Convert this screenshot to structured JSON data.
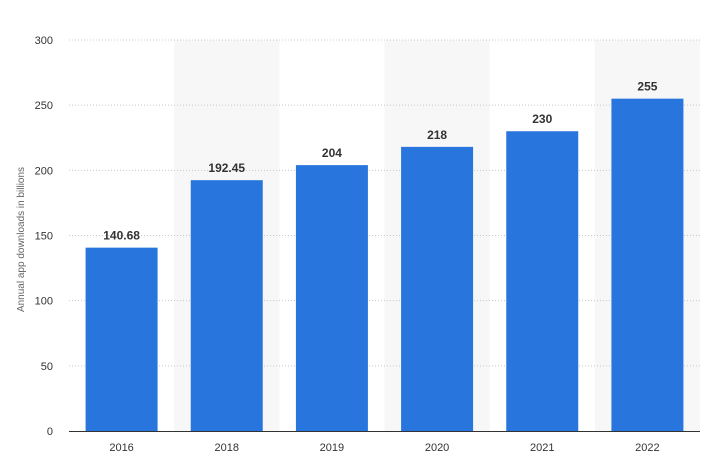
{
  "chart_data": {
    "type": "bar",
    "title": "",
    "xlabel": "",
    "ylabel": "Annual app downloads in billions",
    "categories": [
      "2016",
      "2018",
      "2019",
      "2020",
      "2021",
      "2022"
    ],
    "values": [
      140.68,
      192.45,
      204,
      218,
      230,
      255
    ],
    "value_labels": [
      "140.68",
      "192.45",
      "204",
      "218",
      "230",
      "255"
    ],
    "ylim": [
      0,
      300
    ],
    "yticks": [
      0,
      50,
      100,
      150,
      200,
      250,
      300
    ],
    "ytick_labels": [
      "0",
      "50",
      "100",
      "150",
      "200",
      "250",
      "300"
    ],
    "grid": true,
    "legend": "none",
    "colors": {
      "bar": "#2876DD",
      "band": "#F7F7F7",
      "grid": "#C8C8C8",
      "axis": "#333333",
      "text": "#333333"
    }
  }
}
